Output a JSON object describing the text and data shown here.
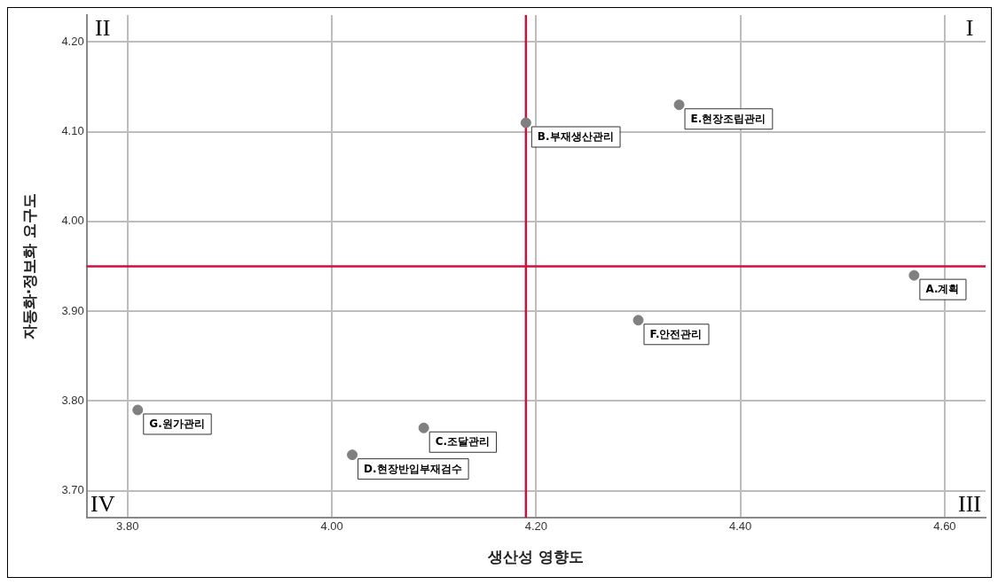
{
  "chart_data": {
    "type": "scatter",
    "xlabel": "생산성 영향도",
    "ylabel": "자동화·정보화 요구도",
    "x": [
      4.57,
      4.19,
      4.09,
      4.02,
      4.34,
      4.3,
      3.81
    ],
    "series": [
      {
        "color": "#808080",
        "values": [
          3.94,
          4.11,
          3.77,
          3.74,
          4.13,
          3.89,
          3.79
        ]
      }
    ],
    "xlim": [
      3.76,
      4.64
    ],
    "xticks": [
      {
        "value": 3.8,
        "label": "3.80"
      },
      {
        "value": 4.0,
        "label": "4.00"
      },
      {
        "value": 4.2,
        "label": "4.20"
      },
      {
        "value": 4.4,
        "label": "4.40"
      },
      {
        "value": 4.6,
        "label": "4.60"
      }
    ],
    "ylim": [
      3.67,
      4.23
    ],
    "yticks": [
      {
        "value": 3.7,
        "label": "3.70"
      },
      {
        "value": 3.8,
        "label": "3.80"
      },
      {
        "value": 3.9,
        "label": "3.90"
      },
      {
        "value": 4.0,
        "label": "4.00"
      },
      {
        "value": 4.1,
        "label": "4.10"
      },
      {
        "value": 4.2,
        "label": "4.20"
      }
    ],
    "grid": true,
    "marker": "circle",
    "legend": false,
    "ref_lines": [
      {
        "axis": "x",
        "value": 4.19,
        "color": "#d0103a"
      },
      {
        "axis": "y",
        "value": 3.95,
        "color": "#d0103a"
      }
    ],
    "annotations": [
      {
        "text": "A.계획",
        "x": 4.57,
        "y": 3.94
      },
      {
        "text": "B.부재생산관리",
        "x": 4.19,
        "y": 4.11
      },
      {
        "text": "C.조달관리",
        "x": 4.09,
        "y": 3.77
      },
      {
        "text": "D.현장반입부재검수",
        "x": 4.02,
        "y": 3.74
      },
      {
        "text": "E.현장조립관리",
        "x": 4.34,
        "y": 4.13
      },
      {
        "text": "F.안전관리",
        "x": 4.3,
        "y": 3.89
      },
      {
        "text": "G.원가관리",
        "x": 3.81,
        "y": 3.79
      },
      "I",
      "II",
      "III",
      "IV"
    ]
  }
}
